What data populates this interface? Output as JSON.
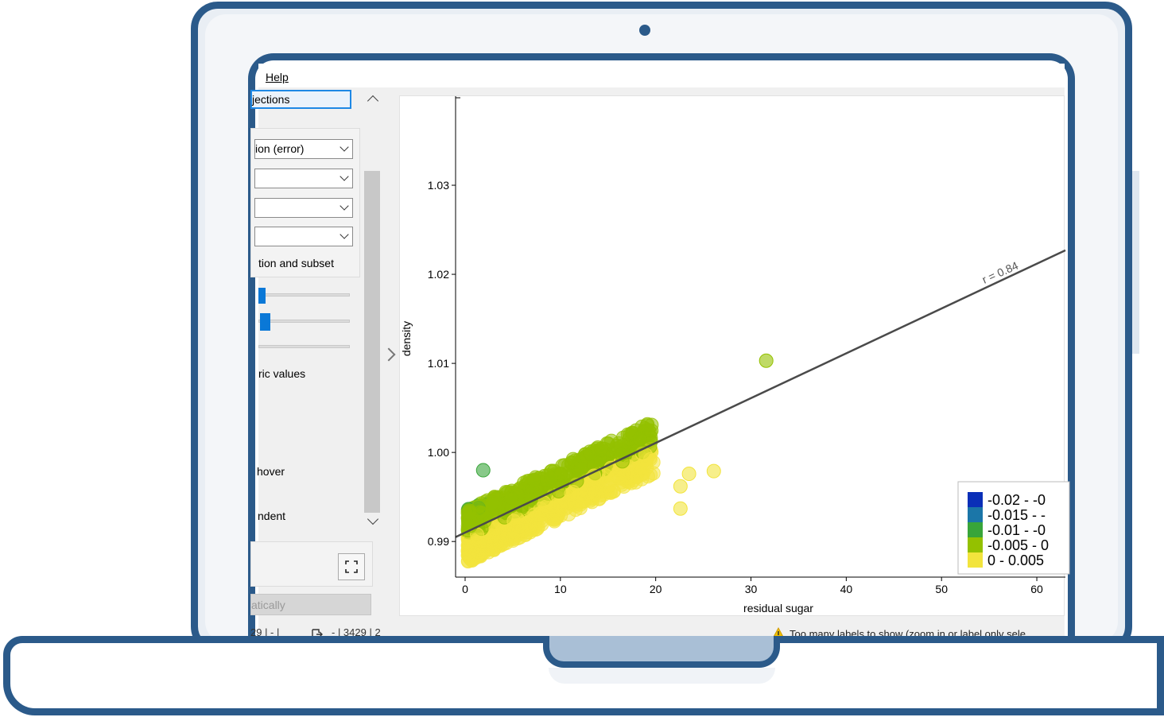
{
  "menu": {
    "help": "Help"
  },
  "left_panel": {
    "projections_button": "jections",
    "combo_1": "ion (error)",
    "combo_2": "",
    "combo_3": "",
    "combo_4": "",
    "subset_label": "tion and subset",
    "numeric_label": "ric values",
    "hover_label": "hover",
    "independent_label": "ndent",
    "auto_button": "atically"
  },
  "status_bar": {
    "left_text": "29 | - |",
    "middle_text": "- | 3429 | 2",
    "warning_text": "Too many labels to show (zoom in or label only sele"
  },
  "chart_data": {
    "type": "scatter",
    "xlabel": "residual sugar",
    "ylabel": "density",
    "xlim": [
      -1,
      63
    ],
    "ylim": [
      0.986,
      1.04
    ],
    "x_ticks": [
      "0",
      "10",
      "20",
      "30",
      "40",
      "50",
      "60"
    ],
    "y_ticks": [
      "0.99",
      "1.00",
      "1.01",
      "1.02",
      "1.03"
    ],
    "regression_label": "r = 0.84",
    "regression": {
      "x0": -1,
      "y0": 0.9905,
      "x1": 63,
      "y1": 1.0227
    },
    "legend": [
      {
        "label": "-0.02 - -0",
        "color": "#0a2fb8"
      },
      {
        "label": "-0.015 - -",
        "color": "#1b76a8"
      },
      {
        "label": "-0.01 - -0",
        "color": "#38a53a"
      },
      {
        "label": "-0.005 - 0",
        "color": "#94c100"
      },
      {
        "label": "0 - 0.005",
        "color": "#f2e43d"
      }
    ],
    "outliers": [
      {
        "x": 31.6,
        "y": 1.0103,
        "color": "#94c100"
      },
      {
        "x": 26.1,
        "y": 0.9979,
        "color": "#f2e43d"
      },
      {
        "x": 23.5,
        "y": 0.9976,
        "color": "#f2e43d"
      },
      {
        "x": 22.6,
        "y": 0.9962,
        "color": "#f2e43d"
      },
      {
        "x": 22.6,
        "y": 0.9937,
        "color": "#f2e43d"
      },
      {
        "x": 1.9,
        "y": 0.998,
        "color": "#38a53a"
      }
    ]
  }
}
